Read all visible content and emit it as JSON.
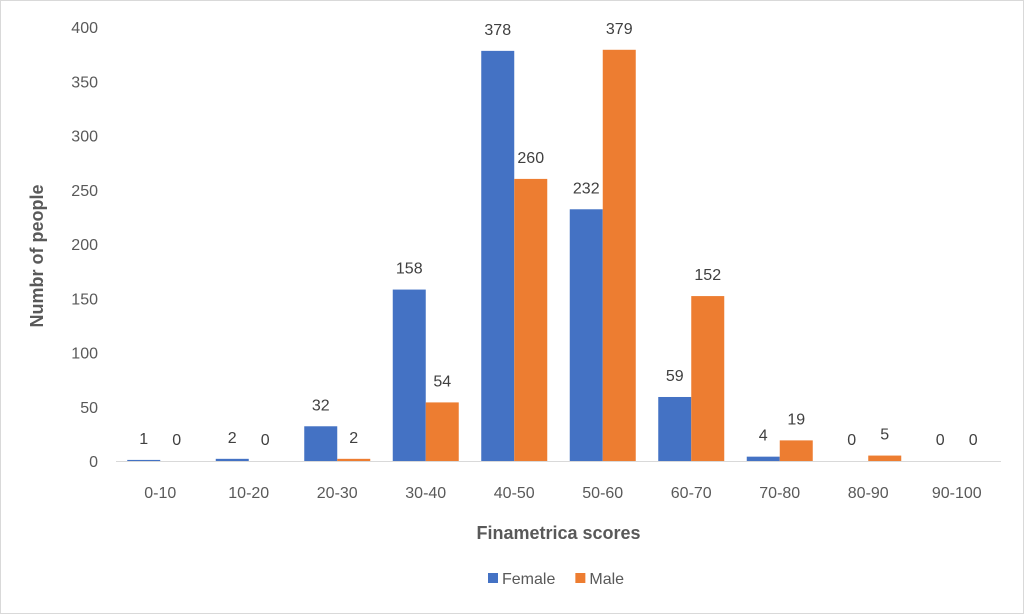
{
  "chart_data": {
    "type": "bar",
    "title": "",
    "xlabel": "Finametrica scores",
    "ylabel": "Numbr of people",
    "categories": [
      "0-10",
      "10-20",
      "20-30",
      "30-40",
      "40-50",
      "50-60",
      "60-70",
      "70-80",
      "80-90",
      "90-100"
    ],
    "series": [
      {
        "name": "Female",
        "color": "#4472c4",
        "values": [
          1,
          2,
          32,
          158,
          378,
          232,
          59,
          4,
          0,
          0
        ]
      },
      {
        "name": "Male",
        "color": "#ed7d31",
        "values": [
          0,
          0,
          2,
          54,
          260,
          379,
          152,
          19,
          5,
          0
        ]
      }
    ],
    "ylim": [
      0,
      400
    ],
    "yticks": [
      0,
      50,
      100,
      150,
      200,
      250,
      300,
      350,
      400
    ],
    "grid": false,
    "legend_position": "bottom",
    "data_labels": true
  }
}
